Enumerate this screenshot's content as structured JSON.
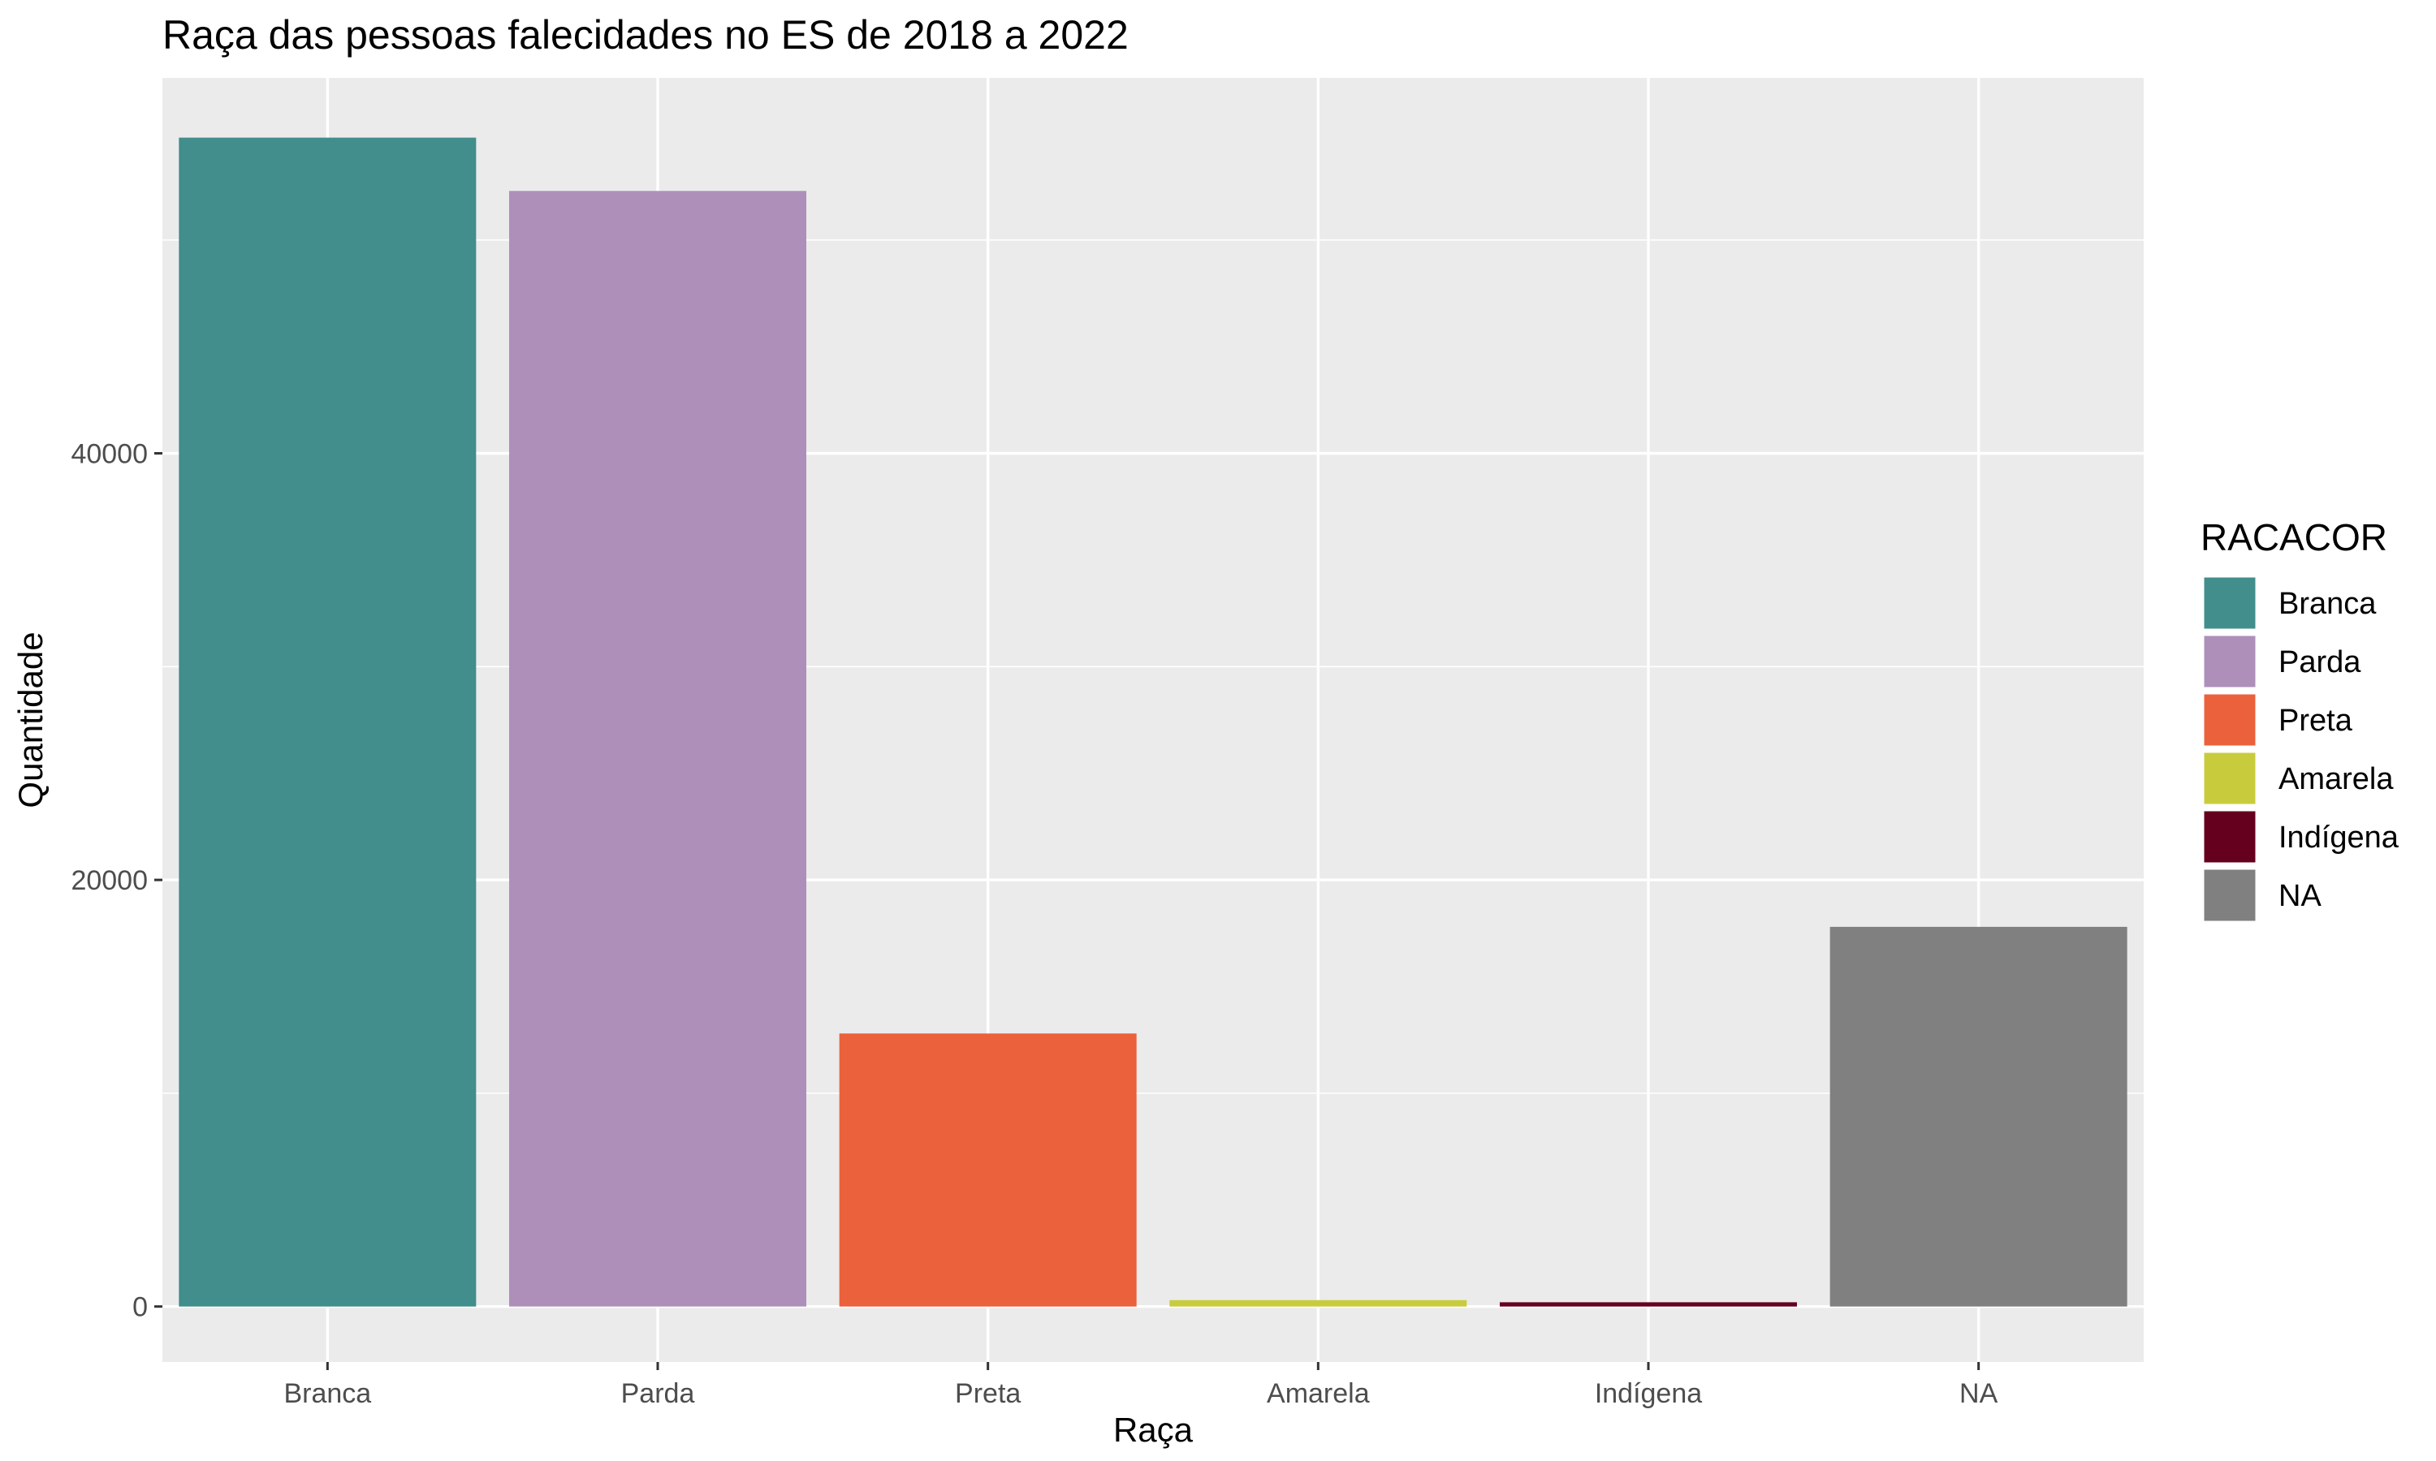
{
  "chart_data": {
    "type": "bar",
    "title": "Raça das pessoas falecidades no ES de 2018 a 2022",
    "xlabel": "Raça",
    "ylabel": "Quantidade",
    "categories": [
      "Branca",
      "Parda",
      "Preta",
      "Amarela",
      "Indígena",
      "NA"
    ],
    "values": [
      54800,
      52300,
      12800,
      300,
      200,
      17800
    ],
    "colors": [
      "#418e8c",
      "#ae8fba",
      "#eb613c",
      "#c8cc3c",
      "#65001f",
      "#808080"
    ],
    "ylim": [
      -2600,
      57600
    ],
    "yticks": [
      0,
      20000,
      40000
    ],
    "ytick_labels": [
      "0",
      "20000",
      "40000"
    ],
    "grid": true,
    "panel_background": "#ebebeb",
    "legend": {
      "title": "RACACOR",
      "position": "right",
      "entries": [
        "Branca",
        "Parda",
        "Preta",
        "Amarela",
        "Indígena",
        "NA"
      ]
    }
  }
}
